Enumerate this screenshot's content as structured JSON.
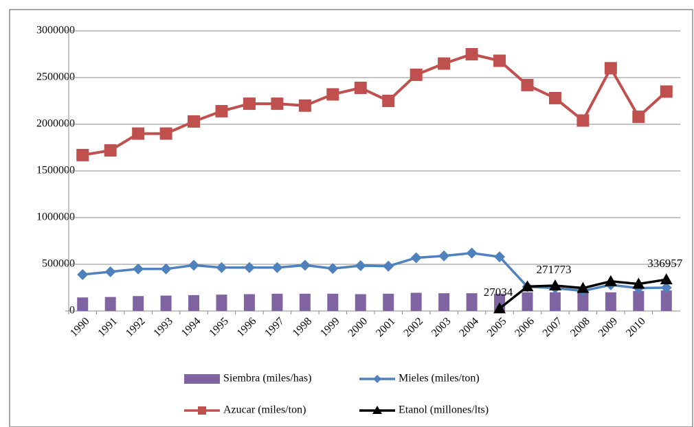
{
  "chart_data": {
    "type": "combo",
    "categories": [
      "1990",
      "1991",
      "1992",
      "1993",
      "1994",
      "1995",
      "1996",
      "1997",
      "1998",
      "1999",
      "2000",
      "2001",
      "2002",
      "2003",
      "2004",
      "2005",
      "2006",
      "2007",
      "2008",
      "2009",
      "2010",
      null
    ],
    "ylim": [
      0,
      3000000
    ],
    "yticks": [
      0,
      500000,
      1000000,
      1500000,
      2000000,
      2500000,
      3000000
    ],
    "grid": true,
    "series": [
      {
        "name": "Siembra (miles/has)",
        "type": "bar",
        "color": "#8064a2",
        "values": [
          145000,
          150000,
          160000,
          165000,
          170000,
          175000,
          180000,
          185000,
          185000,
          185000,
          180000,
          185000,
          195000,
          190000,
          190000,
          185000,
          200000,
          200000,
          200000,
          200000,
          215000,
          220000
        ]
      },
      {
        "name": "Mieles (miles/ton)",
        "type": "line",
        "marker": "diamond",
        "color": "#4f81bd",
        "values": [
          390000,
          420000,
          450000,
          450000,
          490000,
          465000,
          465000,
          465000,
          490000,
          455000,
          485000,
          480000,
          570000,
          590000,
          620000,
          580000,
          260000,
          245000,
          215000,
          280000,
          245000,
          250000
        ]
      },
      {
        "name": "Azucar (miles/ton)",
        "type": "line",
        "marker": "square",
        "color": "#c0504d",
        "values": [
          1670000,
          1720000,
          1900000,
          1900000,
          2030000,
          2140000,
          2220000,
          2220000,
          2200000,
          2320000,
          2390000,
          2250000,
          2530000,
          2650000,
          2750000,
          2680000,
          2420000,
          2280000,
          2040000,
          2600000,
          2080000,
          2350000
        ]
      },
      {
        "name": "Etanol (millones/lts)",
        "type": "line",
        "marker": "triangle",
        "color": "#000000",
        "values": [
          null,
          null,
          null,
          null,
          null,
          null,
          null,
          null,
          null,
          null,
          null,
          null,
          null,
          null,
          null,
          27034,
          262000,
          271773,
          245000,
          318000,
          290000,
          336957
        ],
        "value_labels": [
          null,
          null,
          null,
          null,
          null,
          null,
          null,
          null,
          null,
          null,
          null,
          null,
          null,
          null,
          null,
          "27034",
          null,
          "271773",
          null,
          null,
          null,
          "336957"
        ]
      }
    ]
  }
}
